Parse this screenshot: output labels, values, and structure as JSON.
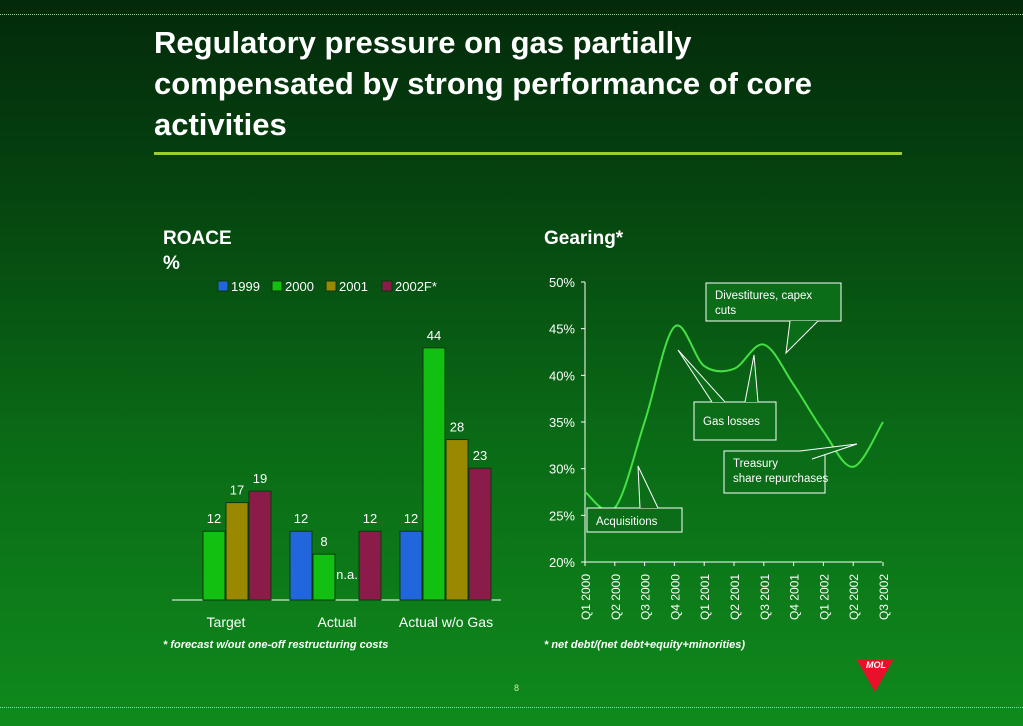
{
  "slide": {
    "title": "Regulatory pressure on gas partially\ncompensated by strong performance of core\nactivities",
    "page_number": "8",
    "logo_text": "MOL"
  },
  "roace": {
    "heading": "ROACE",
    "unit": "%",
    "footnote": "* forecast w/out one-off restructuring costs"
  },
  "gearing": {
    "heading": "Gearing*",
    "footnote": "* net debt/(net debt+equity+minorities)"
  },
  "chart_data": [
    {
      "type": "bar",
      "title": "ROACE",
      "ylabel": "%",
      "categories": [
        "Target",
        "Actual",
        "Actual w/o Gas"
      ],
      "series": [
        {
          "name": "1999",
          "color": "#2266dd",
          "values": [
            null,
            12,
            12
          ]
        },
        {
          "name": "2000",
          "color": "#11c011",
          "values": [
            12,
            8,
            44
          ]
        },
        {
          "name": "2001",
          "color": "#998800",
          "values": [
            17,
            null,
            28
          ]
        },
        {
          "name": "2002F*",
          "color": "#8b1c4a",
          "values": [
            19,
            12,
            23
          ]
        }
      ],
      "annotations": [
        {
          "text": "n.a.",
          "category": "Actual",
          "series": "2001"
        }
      ],
      "ylim": [
        0,
        46
      ],
      "legend": "top"
    },
    {
      "type": "line",
      "title": "Gearing*",
      "categories": [
        "Q1 2000",
        "Q2 2000",
        "Q3 2000",
        "Q4 2000",
        "Q1 2001",
        "Q2 2001",
        "Q3 2001",
        "Q4 2001",
        "Q1 2002",
        "Q2 2002",
        "Q3 2002"
      ],
      "series": [
        {
          "color": "#44e044",
          "values": [
            27.5,
            25.8,
            35,
            45.2,
            41,
            40.7,
            43.3,
            39,
            34,
            30.2,
            35
          ]
        }
      ],
      "yticks": [
        "20%",
        "25%",
        "30%",
        "35%",
        "40%",
        "45%",
        "50%"
      ],
      "ylim": [
        20,
        50
      ],
      "grid": false,
      "callouts": [
        {
          "text": "Divestitures, capex cuts",
          "points_to": [
            "Q3 2001"
          ]
        },
        {
          "text": "Gas losses",
          "points_to": [
            "Q4 2000",
            "Q3 2001"
          ]
        },
        {
          "text": "Treasury share repurchases",
          "points_to": [
            "Q2 2002"
          ]
        },
        {
          "text": "Acquisitions",
          "points_to": [
            "Q3 2000"
          ]
        }
      ]
    }
  ]
}
